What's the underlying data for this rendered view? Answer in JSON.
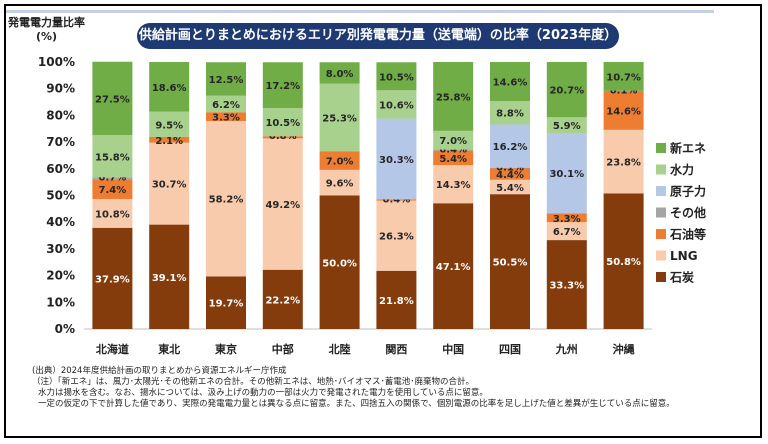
{
  "page_title": "供給計画とりまとめにおけるエリア別発電電力量（送電端）の比率（2023年度）",
  "chart_data": {
    "type": "bar",
    "stacked": true,
    "title": "供給計画とりまとめにおけるエリア別発電電力量（送電端）の比率（2023年度）",
    "ylabel_line1": "発電電力量比率",
    "ylabel_line2": "(%)",
    "ylim": [
      0,
      100
    ],
    "yticks": [
      "0%",
      "10%",
      "20%",
      "30%",
      "40%",
      "50%",
      "60%",
      "70%",
      "80%",
      "90%",
      "100%"
    ],
    "categories": [
      "北海道",
      "東北",
      "東京",
      "中部",
      "北陸",
      "関西",
      "中国",
      "四国",
      "九州",
      "沖縄"
    ],
    "legend_position": "right",
    "series": [
      {
        "name": "石炭",
        "color": "#843c0c",
        "values": [
          37.9,
          39.1,
          19.7,
          22.2,
          50.0,
          21.8,
          47.1,
          50.5,
          33.3,
          50.8
        ],
        "labels": [
          "37.9%",
          "39.1%",
          "19.7%",
          "22.2%",
          "50.0%",
          "21.8%",
          "47.1%",
          "50.5%",
          "33.3%",
          "50.8%"
        ]
      },
      {
        "name": "LNG",
        "color": "#f8cbad",
        "values": [
          10.8,
          30.7,
          58.2,
          49.2,
          9.6,
          26.3,
          14.3,
          5.4,
          6.7,
          23.8
        ],
        "labels": [
          "10.8%",
          "30.7%",
          "58.2%",
          "49.2%",
          "9.6%",
          "26.3%",
          "14.3%",
          "5.4%",
          "6.7%",
          "23.8%"
        ]
      },
      {
        "name": "石油等",
        "color": "#ed7d31",
        "values": [
          7.4,
          2.1,
          3.3,
          0.8,
          7.0,
          0.4,
          5.4,
          4.4,
          3.3,
          14.6
        ],
        "labels": [
          "7.4%",
          "2.1%",
          "3.3%",
          "0.8%",
          "7.0%",
          "0.4%",
          "5.4%",
          "4.4%",
          "3.3%",
          "14.6%"
        ]
      },
      {
        "name": "その他",
        "color": "#a5a5a5",
        "values": [
          0.7,
          0,
          0,
          0,
          0,
          0,
          0.4,
          0.1,
          0,
          0.1
        ],
        "labels": [
          "0.7%",
          "",
          "",
          "",
          "",
          "",
          "0.4%",
          "0.1%",
          "",
          "0.1%"
        ]
      },
      {
        "name": "原子力",
        "color": "#b4c7e7",
        "values": [
          0,
          0,
          0,
          0,
          0,
          30.3,
          0,
          16.2,
          30.1,
          0
        ],
        "labels": [
          "",
          "",
          "",
          "",
          "",
          "30.3%",
          "",
          "16.2%",
          "30.1%",
          ""
        ]
      },
      {
        "name": "水力",
        "color": "#a9d18e",
        "values": [
          15.8,
          9.5,
          6.2,
          10.5,
          25.3,
          10.6,
          7.0,
          8.8,
          5.9,
          0
        ],
        "labels": [
          "15.8%",
          "9.5%",
          "6.2%",
          "10.5%",
          "25.3%",
          "10.6%",
          "7.0%",
          "8.8%",
          "5.9%",
          ""
        ]
      },
      {
        "name": "新エネ",
        "color": "#70ad47",
        "values": [
          27.5,
          18.6,
          12.5,
          17.2,
          8.0,
          10.5,
          25.8,
          14.6,
          20.7,
          10.7
        ],
        "labels": [
          "27.5%",
          "18.6%",
          "12.5%",
          "17.2%",
          "8.0%",
          "10.5%",
          "25.8%",
          "14.6%",
          "20.7%",
          "10.7%"
        ]
      }
    ]
  },
  "notes": [
    "(出典）2024年度供給計画の取りまとめから資源エネルギー庁作成",
    "（注）「新エネ」は、風力･太陽光･その他新エネの合計。その他新エネは、地熱･バイオマス･蓄電池･廃棄物の合計。",
    "水力は揚水を含む。なお、揚水については、汲み上げの動力の一部は火力で発電された電力を使用している点に留意。",
    "一定の仮定の下で計算した値であり、実際の発電電力量とは異なる点に留意。また、四捨五入の関係で、個別電源の比率を足し上げた値と差異が生じている点に留意。"
  ]
}
